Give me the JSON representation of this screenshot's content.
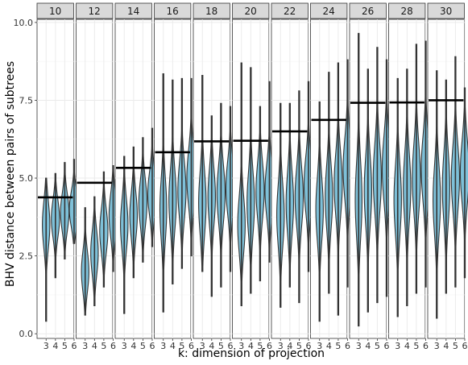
{
  "chart_data": {
    "type": "violin",
    "ylabel": "BHV distance between pairs of subtrees",
    "xlabel": "k: dimension of projection",
    "x_categories": [
      "3",
      "4",
      "5",
      "6"
    ],
    "y_ticks": [
      "0.0",
      "2.5",
      "5.0",
      "7.5",
      "10.0"
    ],
    "ylim": [
      -0.15,
      10.1
    ],
    "grid": true,
    "violin_fill": "#7ec0d8",
    "violin_stroke": "#333333",
    "strip_fill": "#d9d9d9",
    "facets": [
      {
        "label": "10",
        "hline": 4.38,
        "violins": [
          {
            "min": 0.4,
            "max": 5.0,
            "mode": 3.5,
            "spread": 0.75,
            "width": 0.55
          },
          {
            "min": 1.8,
            "max": 5.15,
            "mode": 3.7,
            "spread": 0.6,
            "width": 0.6
          },
          {
            "min": 2.4,
            "max": 5.5,
            "mode": 3.9,
            "spread": 0.6,
            "width": 0.62
          },
          {
            "min": 2.9,
            "max": 5.6,
            "mode": 4.0,
            "spread": 0.55,
            "width": 0.7
          }
        ]
      },
      {
        "label": "12",
        "hline": 4.85,
        "violins": [
          {
            "min": 0.6,
            "max": 4.05,
            "mode": 2.0,
            "spread": 0.65,
            "width": 0.55
          },
          {
            "min": 0.9,
            "max": 4.4,
            "mode": 2.6,
            "spread": 0.7,
            "width": 0.55
          },
          {
            "min": 1.5,
            "max": 5.2,
            "mode": 3.3,
            "spread": 0.7,
            "width": 0.6
          },
          {
            "min": 2.0,
            "max": 5.4,
            "mode": 3.8,
            "spread": 0.7,
            "width": 0.6
          }
        ]
      },
      {
        "label": "14",
        "hline": 5.33,
        "violins": [
          {
            "min": 0.65,
            "max": 5.7,
            "mode": 3.5,
            "spread": 0.8,
            "width": 0.55
          },
          {
            "min": 1.8,
            "max": 6.0,
            "mode": 3.8,
            "spread": 0.75,
            "width": 0.55
          },
          {
            "min": 2.3,
            "max": 6.3,
            "mode": 4.2,
            "spread": 0.75,
            "width": 0.6
          },
          {
            "min": 2.8,
            "max": 6.6,
            "mode": 4.5,
            "spread": 0.7,
            "width": 0.65
          }
        ]
      },
      {
        "label": "16",
        "hline": 5.83,
        "violins": [
          {
            "min": 0.7,
            "max": 8.35,
            "mode": 4.0,
            "spread": 1.0,
            "width": 0.5
          },
          {
            "min": 1.6,
            "max": 8.15,
            "mode": 4.3,
            "spread": 0.95,
            "width": 0.55
          },
          {
            "min": 2.1,
            "max": 8.2,
            "mode": 4.6,
            "spread": 0.9,
            "width": 0.6
          },
          {
            "min": 2.5,
            "max": 8.2,
            "mode": 5.0,
            "spread": 0.9,
            "width": 0.65
          }
        ]
      },
      {
        "label": "18",
        "hline": 6.18,
        "violins": [
          {
            "min": 2.0,
            "max": 8.3,
            "mode": 4.2,
            "spread": 1.0,
            "width": 0.55
          },
          {
            "min": 1.2,
            "max": 7.0,
            "mode": 4.4,
            "spread": 0.9,
            "width": 0.55
          },
          {
            "min": 1.5,
            "max": 7.4,
            "mode": 4.5,
            "spread": 0.9,
            "width": 0.6
          },
          {
            "min": 2.0,
            "max": 7.3,
            "mode": 4.7,
            "spread": 0.85,
            "width": 0.65
          }
        ]
      },
      {
        "label": "20",
        "hline": 6.2,
        "violins": [
          {
            "min": 0.9,
            "max": 8.7,
            "mode": 3.5,
            "spread": 0.9,
            "width": 0.55
          },
          {
            "min": 1.3,
            "max": 8.55,
            "mode": 4.2,
            "spread": 1.0,
            "width": 0.55
          },
          {
            "min": 1.7,
            "max": 7.3,
            "mode": 4.6,
            "spread": 0.9,
            "width": 0.6
          },
          {
            "min": 2.3,
            "max": 8.1,
            "mode": 4.6,
            "spread": 0.85,
            "width": 0.65
          }
        ]
      },
      {
        "label": "22",
        "hline": 6.5,
        "violins": [
          {
            "min": 0.85,
            "max": 7.4,
            "mode": 3.8,
            "spread": 1.0,
            "width": 0.55
          },
          {
            "min": 1.5,
            "max": 7.4,
            "mode": 4.2,
            "spread": 1.0,
            "width": 0.55
          },
          {
            "min": 1.0,
            "max": 7.8,
            "mode": 4.4,
            "spread": 0.95,
            "width": 0.6
          },
          {
            "min": 2.0,
            "max": 8.1,
            "mode": 4.8,
            "spread": 0.9,
            "width": 0.65
          }
        ]
      },
      {
        "label": "24",
        "hline": 6.87,
        "violins": [
          {
            "min": 0.4,
            "max": 7.45,
            "mode": 4.0,
            "spread": 1.0,
            "width": 0.55
          },
          {
            "min": 1.3,
            "max": 8.4,
            "mode": 4.4,
            "spread": 1.0,
            "width": 0.55
          },
          {
            "min": 0.6,
            "max": 8.7,
            "mode": 4.8,
            "spread": 1.0,
            "width": 0.6
          },
          {
            "min": 1.5,
            "max": 8.8,
            "mode": 5.3,
            "spread": 1.0,
            "width": 0.65
          }
        ]
      },
      {
        "label": "26",
        "hline": 7.42,
        "violins": [
          {
            "min": 0.25,
            "max": 9.65,
            "mode": 4.3,
            "spread": 1.2,
            "width": 0.5
          },
          {
            "min": 0.7,
            "max": 8.5,
            "mode": 4.6,
            "spread": 1.1,
            "width": 0.55
          },
          {
            "min": 1.0,
            "max": 9.2,
            "mode": 5.0,
            "spread": 1.1,
            "width": 0.6
          },
          {
            "min": 1.2,
            "max": 8.8,
            "mode": 5.3,
            "spread": 1.05,
            "width": 0.65
          }
        ]
      },
      {
        "label": "28",
        "hline": 7.43,
        "violins": [
          {
            "min": 0.55,
            "max": 8.2,
            "mode": 4.3,
            "spread": 1.1,
            "width": 0.55
          },
          {
            "min": 0.9,
            "max": 8.5,
            "mode": 4.7,
            "spread": 1.1,
            "width": 0.55
          },
          {
            "min": 1.3,
            "max": 9.3,
            "mode": 5.0,
            "spread": 1.1,
            "width": 0.6
          },
          {
            "min": 1.5,
            "max": 9.4,
            "mode": 5.3,
            "spread": 1.05,
            "width": 0.65
          }
        ]
      },
      {
        "label": "30",
        "hline": 7.5,
        "violins": [
          {
            "min": 0.5,
            "max": 8.45,
            "mode": 4.3,
            "spread": 1.1,
            "width": 0.55
          },
          {
            "min": 1.3,
            "max": 8.15,
            "mode": 4.7,
            "spread": 1.1,
            "width": 0.55
          },
          {
            "min": 1.5,
            "max": 8.9,
            "mode": 5.0,
            "spread": 1.05,
            "width": 0.6
          },
          {
            "min": 1.8,
            "max": 7.9,
            "mode": 5.2,
            "spread": 1.0,
            "width": 0.65
          }
        ]
      }
    ]
  }
}
